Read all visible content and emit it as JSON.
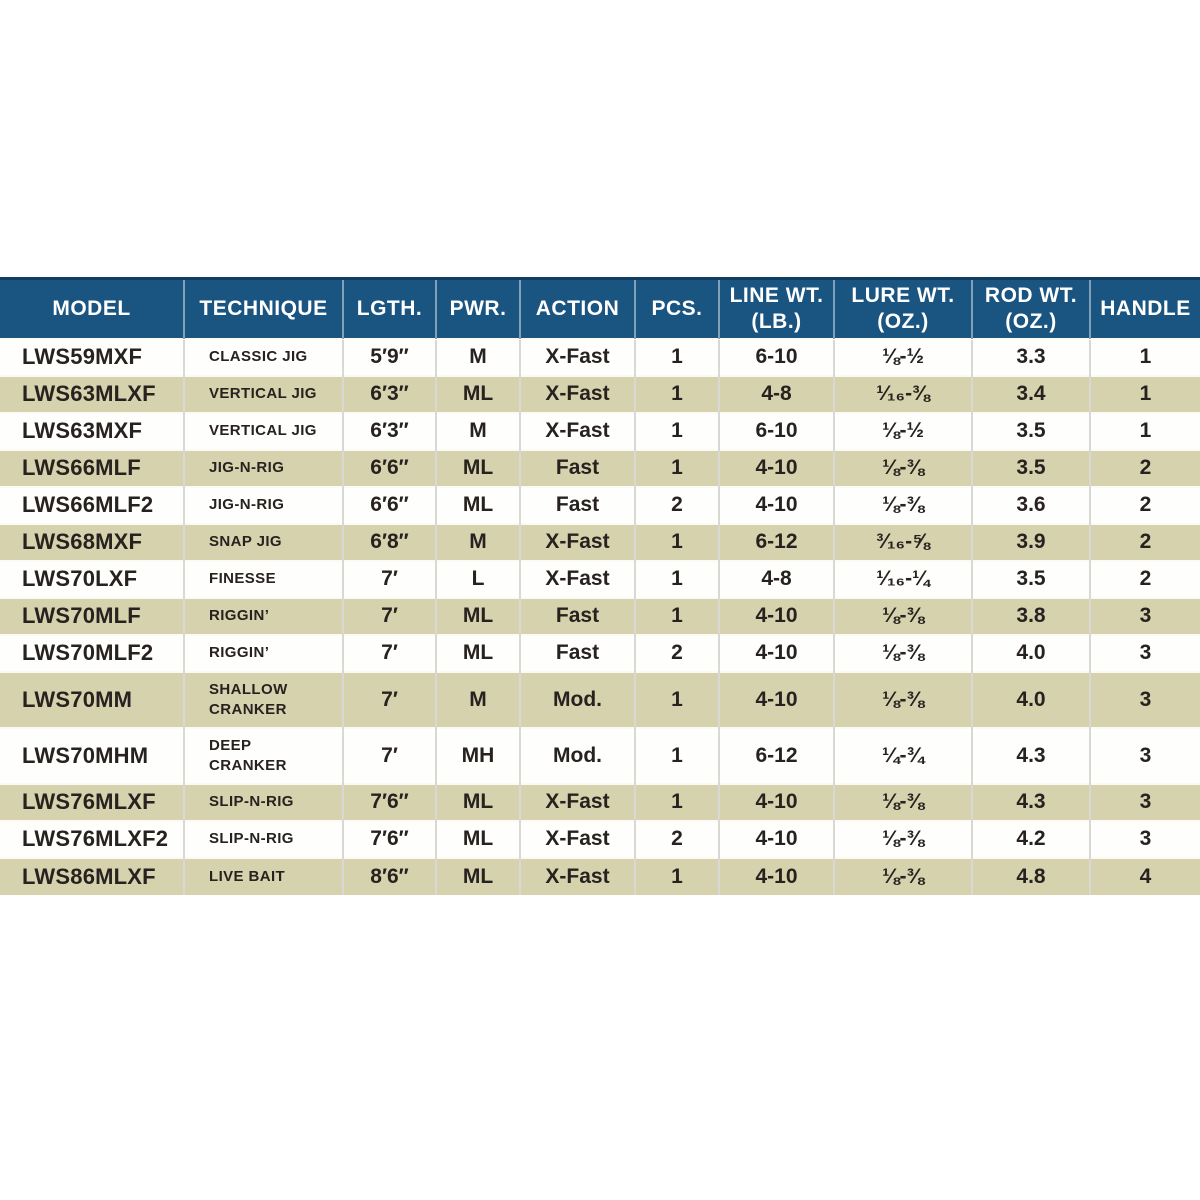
{
  "table": {
    "columns": [
      {
        "id": "model",
        "label": "MODEL"
      },
      {
        "id": "technique",
        "label": "TECHNIQUE"
      },
      {
        "id": "length",
        "label": "LGTH."
      },
      {
        "id": "power",
        "label": "PWR."
      },
      {
        "id": "action",
        "label": "ACTION"
      },
      {
        "id": "pieces",
        "label": "PCS."
      },
      {
        "id": "line_wt",
        "label": "LINE WT.\n(LB.)"
      },
      {
        "id": "lure_wt",
        "label": "LURE WT.\n(OZ.)"
      },
      {
        "id": "rod_wt",
        "label": "ROD WT.\n(OZ.)"
      },
      {
        "id": "handle",
        "label": "HANDLE"
      }
    ],
    "rows": [
      {
        "model": "LWS59MXF",
        "technique": "CLASSIC JIG",
        "length": "5′9″",
        "power": "M",
        "action": "X-Fast",
        "pieces": "1",
        "line_wt": "6-10",
        "lure_wt": "⅛-½",
        "rod_wt": "3.3",
        "handle": "1"
      },
      {
        "model": "LWS63MLXF",
        "technique": "VERTICAL JIG",
        "length": "6′3″",
        "power": "ML",
        "action": "X-Fast",
        "pieces": "1",
        "line_wt": "4-8",
        "lure_wt": "¹⁄₁₆-⅜",
        "rod_wt": "3.4",
        "handle": "1"
      },
      {
        "model": "LWS63MXF",
        "technique": "VERTICAL JIG",
        "length": "6′3″",
        "power": "M",
        "action": "X-Fast",
        "pieces": "1",
        "line_wt": "6-10",
        "lure_wt": "⅛-½",
        "rod_wt": "3.5",
        "handle": "1"
      },
      {
        "model": "LWS66MLF",
        "technique": "JIG-N-RIG",
        "length": "6′6″",
        "power": "ML",
        "action": "Fast",
        "pieces": "1",
        "line_wt": "4-10",
        "lure_wt": "⅛-⅜",
        "rod_wt": "3.5",
        "handle": "2"
      },
      {
        "model": "LWS66MLF2",
        "technique": "JIG-N-RIG",
        "length": "6′6″",
        "power": "ML",
        "action": "Fast",
        "pieces": "2",
        "line_wt": "4-10",
        "lure_wt": "⅛-⅜",
        "rod_wt": "3.6",
        "handle": "2"
      },
      {
        "model": "LWS68MXF",
        "technique": "SNAP JIG",
        "length": "6′8″",
        "power": "M",
        "action": "X-Fast",
        "pieces": "1",
        "line_wt": "6-12",
        "lure_wt": "³⁄₁₆-⅝",
        "rod_wt": "3.9",
        "handle": "2"
      },
      {
        "model": "LWS70LXF",
        "technique": "FINESSE",
        "length": "7′",
        "power": "L",
        "action": "X-Fast",
        "pieces": "1",
        "line_wt": "4-8",
        "lure_wt": "¹⁄₁₆-¼",
        "rod_wt": "3.5",
        "handle": "2"
      },
      {
        "model": "LWS70MLF",
        "technique": "RIGGIN’",
        "length": "7′",
        "power": "ML",
        "action": "Fast",
        "pieces": "1",
        "line_wt": "4-10",
        "lure_wt": "⅛-⅜",
        "rod_wt": "3.8",
        "handle": "3"
      },
      {
        "model": "LWS70MLF2",
        "technique": "RIGGIN’",
        "length": "7′",
        "power": "ML",
        "action": "Fast",
        "pieces": "2",
        "line_wt": "4-10",
        "lure_wt": "⅛-⅜",
        "rod_wt": "4.0",
        "handle": "3"
      },
      {
        "model": "LWS70MM",
        "technique": "SHALLOW\nCRANKER",
        "length": "7′",
        "power": "M",
        "action": "Mod.",
        "pieces": "1",
        "line_wt": "4-10",
        "lure_wt": "⅛-⅜",
        "rod_wt": "4.0",
        "handle": "3"
      },
      {
        "model": "LWS70MHM",
        "technique": "DEEP\nCRANKER",
        "length": "7′",
        "power": "MH",
        "action": "Mod.",
        "pieces": "1",
        "line_wt": "6-12",
        "lure_wt": "¼-¾",
        "rod_wt": "4.3",
        "handle": "3"
      },
      {
        "model": "LWS76MLXF",
        "technique": "SLIP-N-RIG",
        "length": "7′6″",
        "power": "ML",
        "action": "X-Fast",
        "pieces": "1",
        "line_wt": "4-10",
        "lure_wt": "⅛-⅜",
        "rod_wt": "4.3",
        "handle": "3"
      },
      {
        "model": "LWS76MLXF2",
        "technique": "SLIP-N-RIG",
        "length": "7′6″",
        "power": "ML",
        "action": "X-Fast",
        "pieces": "2",
        "line_wt": "4-10",
        "lure_wt": "⅛-⅜",
        "rod_wt": "4.2",
        "handle": "3"
      },
      {
        "model": "LWS86MLXF",
        "technique": "LIVE BAIT",
        "length": "8′6″",
        "power": "ML",
        "action": "X-Fast",
        "pieces": "1",
        "line_wt": "4-10",
        "lure_wt": "⅛-⅜",
        "rod_wt": "4.8",
        "handle": "4"
      }
    ]
  },
  "colors": {
    "header_bg": "#1a5480",
    "header_text": "#ffffff",
    "row_alt_bg": "#d7d2ae",
    "row_bg": "#fefefd",
    "text": "#27221f"
  }
}
